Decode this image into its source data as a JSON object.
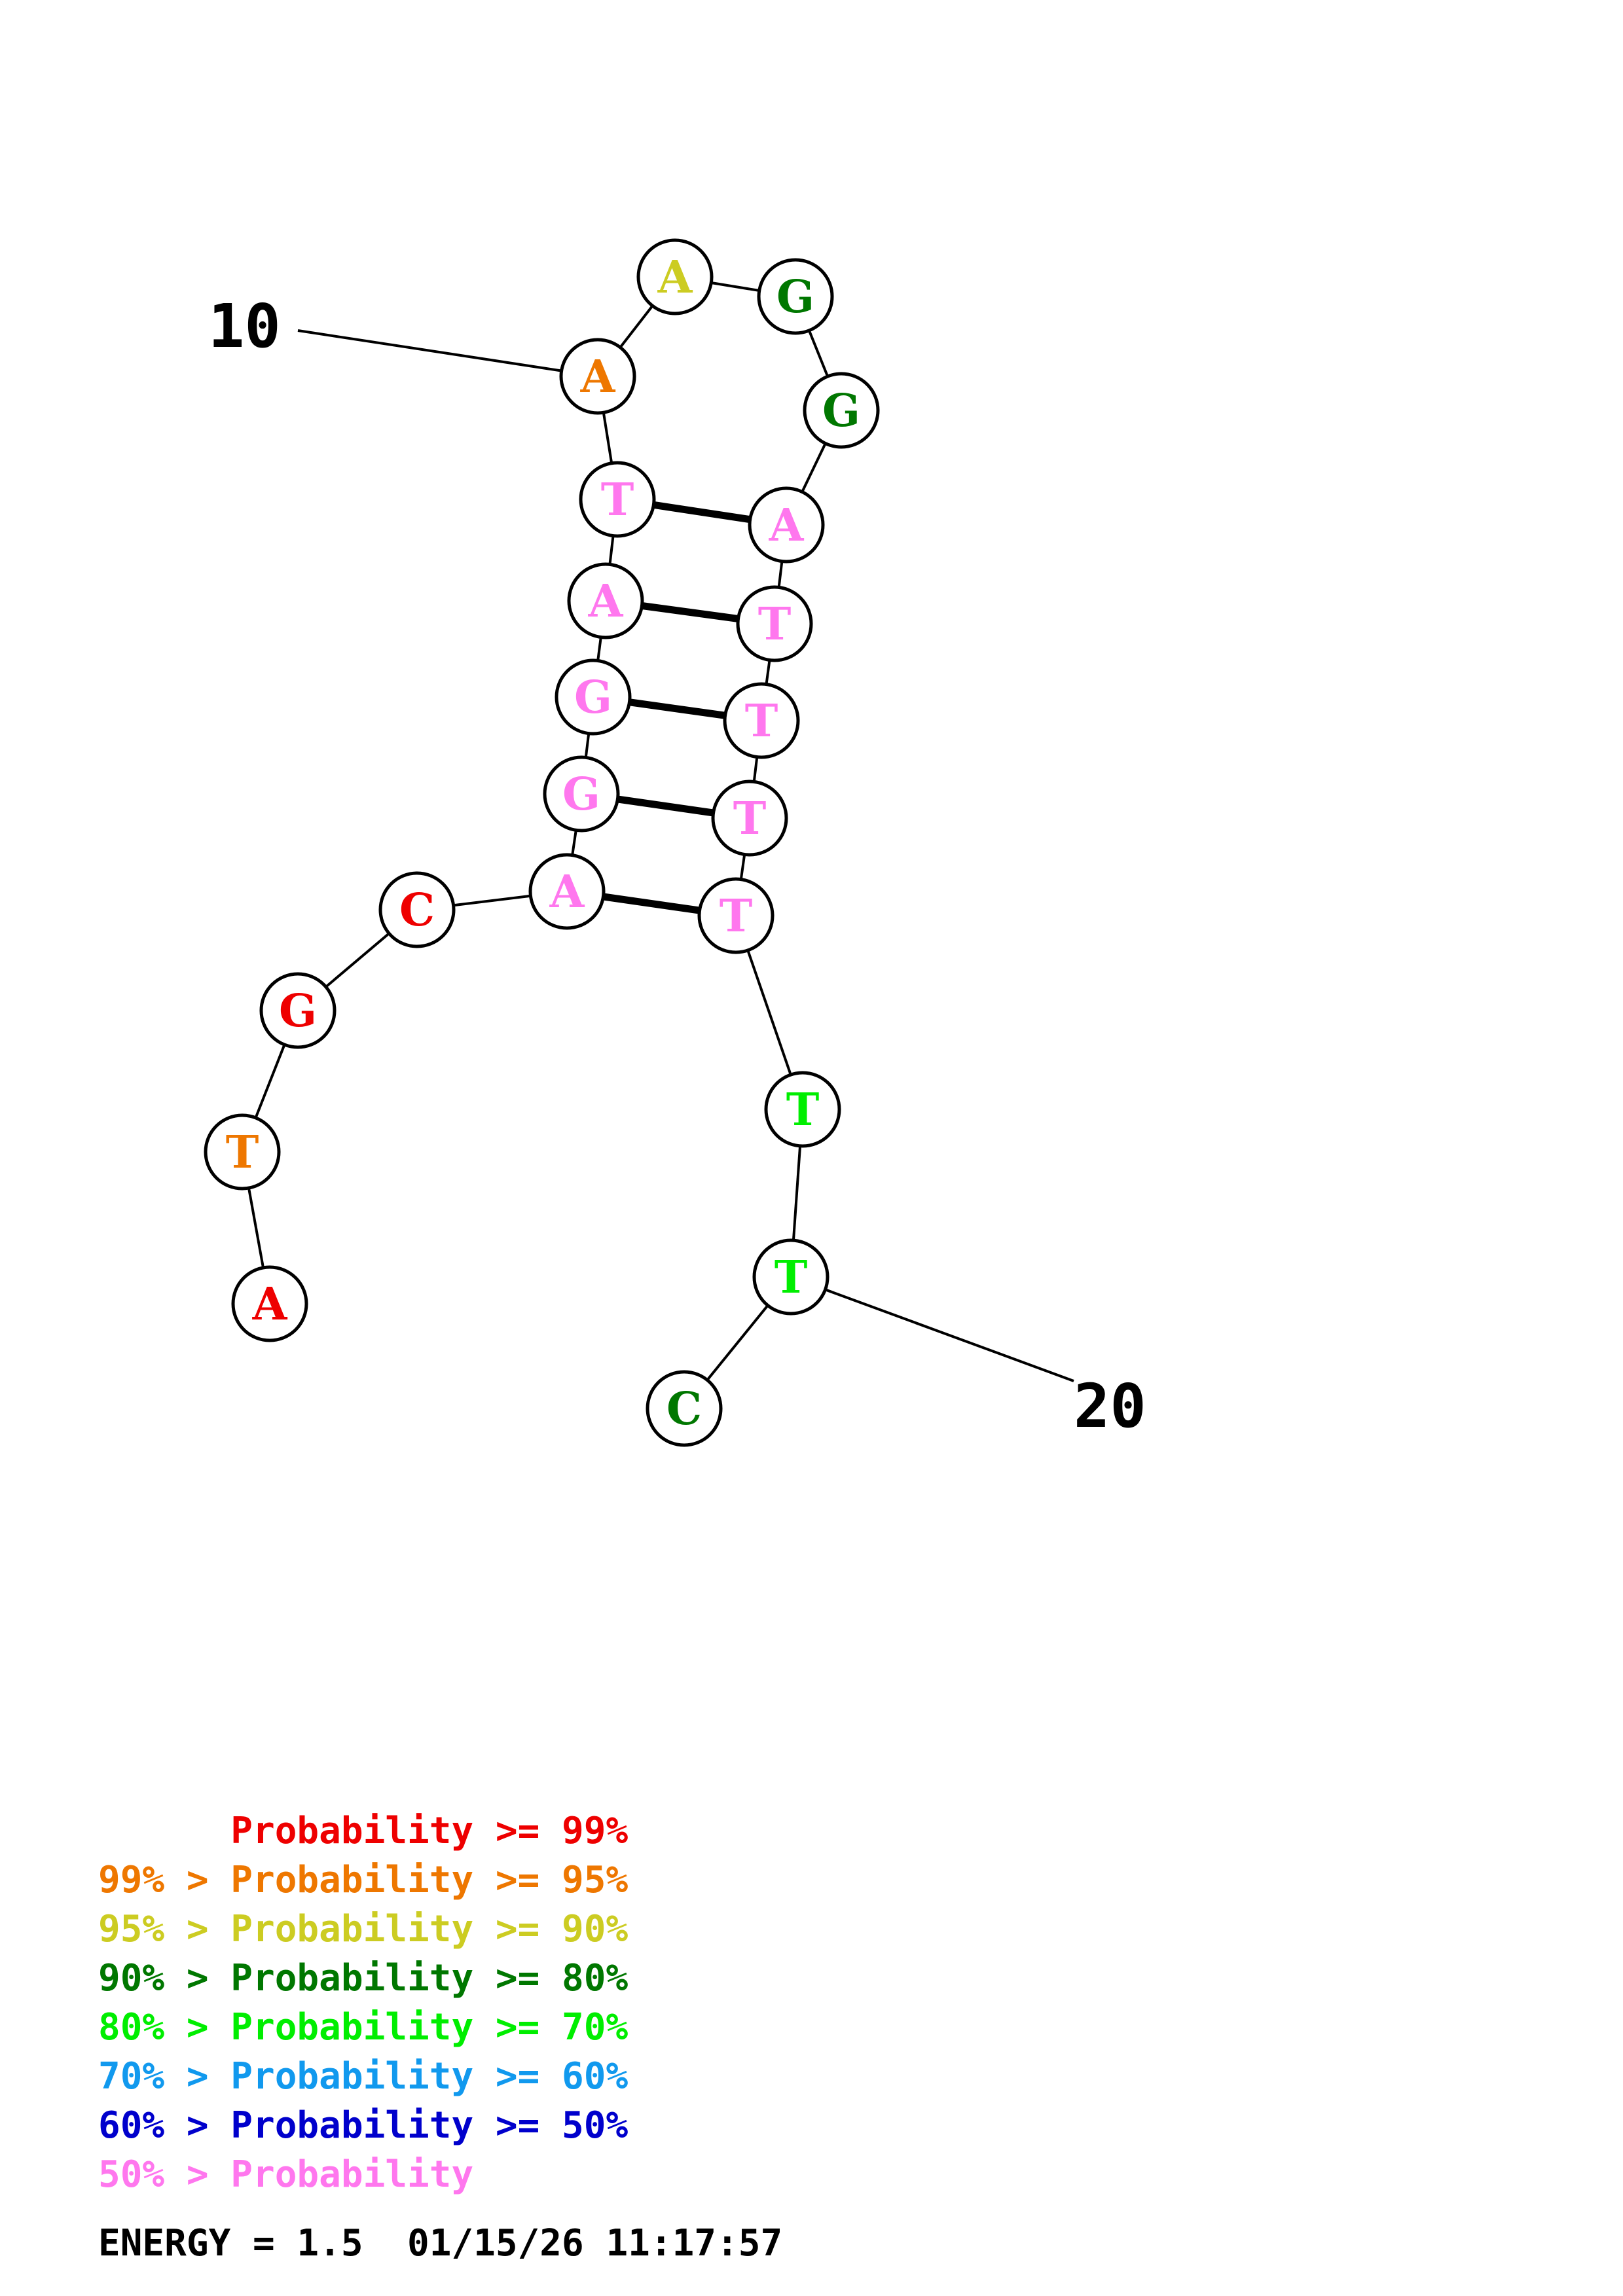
{
  "structure": {
    "bases": [
      {
        "n": "A",
        "color": "#ee0000"
      },
      {
        "n": "T",
        "color": "#ee7700"
      },
      {
        "n": "G",
        "color": "#ee0000"
      },
      {
        "n": "C",
        "color": "#ee0000"
      },
      {
        "n": "A",
        "color": "#ff77ee"
      },
      {
        "n": "G",
        "color": "#ff77ee"
      },
      {
        "n": "G",
        "color": "#ff77ee"
      },
      {
        "n": "A",
        "color": "#ff77ee"
      },
      {
        "n": "T",
        "color": "#ff77ee"
      },
      {
        "n": "A",
        "color": "#ee7700"
      },
      {
        "n": "A",
        "color": "#cccc22"
      },
      {
        "n": "G",
        "color": "#007700"
      },
      {
        "n": "G",
        "color": "#007700"
      },
      {
        "n": "A",
        "color": "#ff77ee"
      },
      {
        "n": "T",
        "color": "#ff77ee"
      },
      {
        "n": "T",
        "color": "#ff77ee"
      },
      {
        "n": "T",
        "color": "#ff77ee"
      },
      {
        "n": "T",
        "color": "#ff77ee"
      },
      {
        "n": "T",
        "color": "#00ee00"
      },
      {
        "n": "T",
        "color": "#00ee00"
      },
      {
        "n": "C",
        "color": "#007700"
      }
    ],
    "pairs": [
      [
        5,
        18
      ],
      [
        6,
        17
      ],
      [
        7,
        16
      ],
      [
        8,
        15
      ],
      [
        9,
        14
      ]
    ],
    "position_labels": [
      {
        "text": "10",
        "base": 10
      },
      {
        "text": "20",
        "base": 20
      }
    ]
  },
  "legend": [
    {
      "prefix": "",
      "arrow": "",
      "label": "Probability",
      "op": ">=",
      "suffix": "99%",
      "color": "#ee0000"
    },
    {
      "prefix": "99%",
      "arrow": ">",
      "label": "Probability",
      "op": ">=",
      "suffix": "95%",
      "color": "#ee7700"
    },
    {
      "prefix": "95%",
      "arrow": ">",
      "label": "Probability",
      "op": ">=",
      "suffix": "90%",
      "color": "#cccc22"
    },
    {
      "prefix": "90%",
      "arrow": ">",
      "label": "Probability",
      "op": ">=",
      "suffix": "80%",
      "color": "#007700"
    },
    {
      "prefix": "80%",
      "arrow": ">",
      "label": "Probability",
      "op": ">=",
      "suffix": "70%",
      "color": "#00ee00"
    },
    {
      "prefix": "70%",
      "arrow": ">",
      "label": "Probability",
      "op": ">=",
      "suffix": "60%",
      "color": "#1199ee"
    },
    {
      "prefix": "60%",
      "arrow": ">",
      "label": "Probability",
      "op": ">=",
      "suffix": "50%",
      "color": "#0000cc"
    },
    {
      "prefix": "50%",
      "arrow": ">",
      "label": "Probability",
      "op": "",
      "suffix": "",
      "color": "#ff77ee"
    }
  ],
  "energy": {
    "label": "ENERGY = 1.5",
    "timestamp": "01/15/26 11:17:57"
  }
}
